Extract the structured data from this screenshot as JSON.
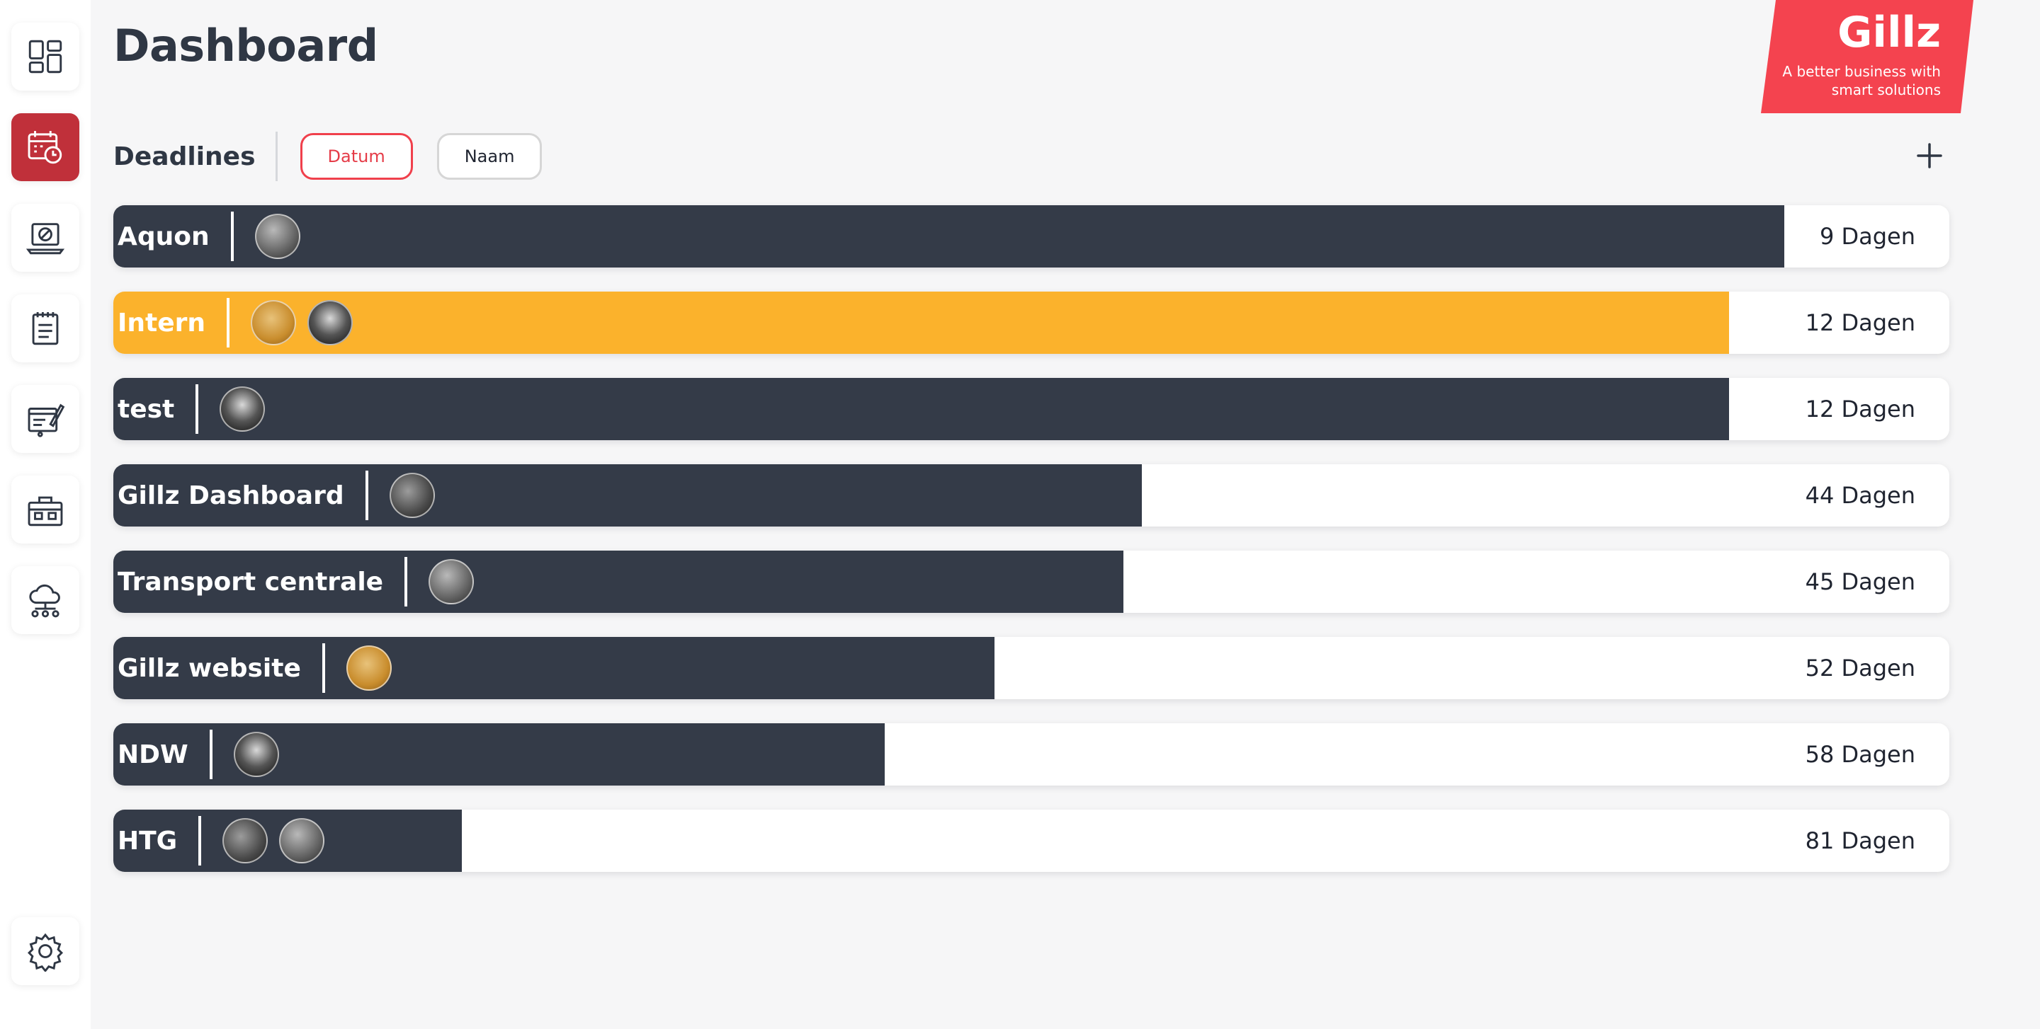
{
  "page": {
    "title": "Dashboard"
  },
  "brand": {
    "name": "Gillz",
    "tagline": "A better business with smart solutions"
  },
  "sidebar": {
    "items": [
      {
        "icon": "dashboard-grid-icon",
        "active": false
      },
      {
        "icon": "calendar-clock-icon",
        "active": true
      },
      {
        "icon": "laptop-support-icon",
        "active": false
      },
      {
        "icon": "notepad-icon",
        "active": false
      },
      {
        "icon": "design-edit-icon",
        "active": false
      },
      {
        "icon": "toolbox-icon",
        "active": false
      },
      {
        "icon": "cloud-network-icon",
        "active": false
      }
    ],
    "settings_icon": "gear-icon"
  },
  "deadlines": {
    "title": "Deadlines",
    "sort_options": [
      "Datum",
      "Naam"
    ],
    "active_sort": "Datum",
    "add_icon": "plus-icon"
  },
  "colors": {
    "dark_bar": "#343b48",
    "highlight_bar": "#fbb22c",
    "active_nav": "#c0303a",
    "brand": "#f4434f"
  },
  "projects": [
    {
      "name": "Aquon",
      "days": "9 Dagen",
      "progress": 0.91,
      "highlight": false,
      "avatars": 1
    },
    {
      "name": "Intern",
      "days": "12 Dagen",
      "progress": 0.88,
      "highlight": true,
      "avatars": 2
    },
    {
      "name": "test",
      "days": "12 Dagen",
      "progress": 0.88,
      "highlight": false,
      "avatars": 1
    },
    {
      "name": "Gillz Dashboard",
      "days": "44 Dagen",
      "progress": 0.56,
      "highlight": false,
      "avatars": 1
    },
    {
      "name": "Transport centrale",
      "days": "45 Dagen",
      "progress": 0.55,
      "highlight": false,
      "avatars": 1
    },
    {
      "name": "Gillz website",
      "days": "52 Dagen",
      "progress": 0.48,
      "highlight": false,
      "avatars": 1
    },
    {
      "name": "NDW",
      "days": "58 Dagen",
      "progress": 0.42,
      "highlight": false,
      "avatars": 1
    },
    {
      "name": "HTG",
      "days": "81 Dagen",
      "progress": 0.19,
      "highlight": false,
      "avatars": 2
    }
  ]
}
